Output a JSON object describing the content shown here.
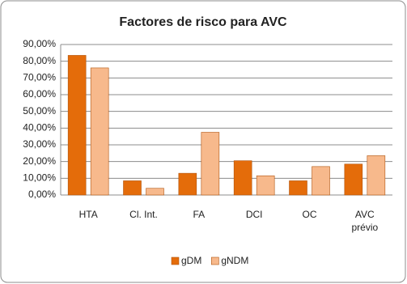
{
  "chart_data": {
    "type": "bar",
    "title": "Factores de risco para AVC",
    "categories": [
      "HTA",
      "Cl. Int.",
      "FA",
      "DCI",
      "OC",
      "AVC prévio"
    ],
    "series": [
      {
        "name": "gDM",
        "color": "#e46c0a",
        "values": [
          83.5,
          8.5,
          13,
          20.5,
          8.5,
          18.5
        ]
      },
      {
        "name": "gNDM",
        "color": "#f7b98c",
        "values": [
          76,
          4,
          37.5,
          11.5,
          17,
          23.5
        ]
      }
    ],
    "ylim": [
      0,
      90
    ],
    "yticks": [
      {
        "value": 0,
        "label": "0,00%"
      },
      {
        "value": 10,
        "label": "10,00%"
      },
      {
        "value": 20,
        "label": "20,00%"
      },
      {
        "value": 30,
        "label": "30,00%"
      },
      {
        "value": 40,
        "label": "40,00%"
      },
      {
        "value": 50,
        "label": "50,00%"
      },
      {
        "value": 60,
        "label": "60,00%"
      },
      {
        "value": 70,
        "label": "70,00%"
      },
      {
        "value": 80,
        "label": "80,00%"
      },
      {
        "value": 90,
        "label": "90,00%"
      }
    ],
    "grid": true,
    "legend": "bottom"
  }
}
